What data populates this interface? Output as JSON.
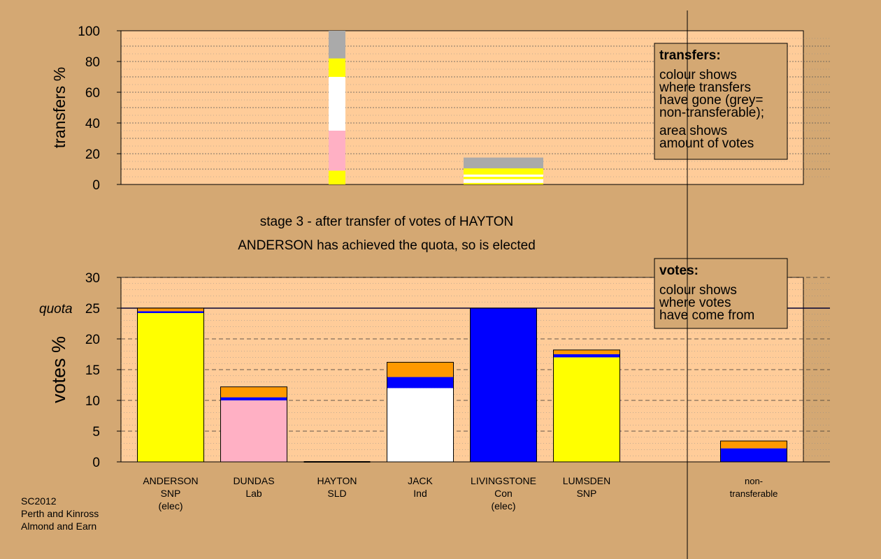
{
  "colors": {
    "background": "#D4A873",
    "plot_bg": "#FFCC99",
    "SNP": "#FFFF00",
    "Lab": "#FFB0C4",
    "SLD": "#FF9900",
    "Ind": "#FFFFFF",
    "Con": "#0000FF",
    "nontransferable": "#AAAAAA"
  },
  "titles": {
    "stage": "stage 3 - after transfer of votes of HAYTON",
    "status": "ANDERSON has achieved the quota, so is elected"
  },
  "footer": [
    "SC2012",
    "Perth and Kinross",
    "Almond and Earn"
  ],
  "chart_data": [
    {
      "type": "bar",
      "name": "transfers",
      "ylabel": "transfers %",
      "ylim": [
        0,
        100
      ],
      "yticks": [
        0,
        20,
        40,
        60,
        80,
        100
      ],
      "legend": {
        "title": "transfers:",
        "lines": [
          "colour shows",
          "where transfers",
          "have gone (grey=",
          "non-transferable);",
          "",
          "area shows",
          "amount of votes"
        ]
      },
      "bars": [
        {
          "category": "HAYTON",
          "stacked": [
            {
              "party": "SNP",
              "value": 9
            },
            {
              "party": "Lab",
              "value": 26
            },
            {
              "party": "Ind",
              "value": 35
            },
            {
              "party": "SNP",
              "value": 12
            },
            {
              "party": "nontransferable",
              "value": 18
            }
          ]
        },
        {
          "category": "LIVINGSTONE",
          "stacked": [
            {
              "party": "SNP",
              "value": 1
            },
            {
              "party": "Ind",
              "value": 2.5
            },
            {
              "party": "SNP",
              "value": 1.5
            },
            {
              "party": "Ind",
              "value": 1.5
            },
            {
              "party": "SNP",
              "value": 4
            },
            {
              "party": "nontransferable",
              "value": 7
            }
          ]
        }
      ]
    },
    {
      "type": "bar",
      "name": "votes",
      "ylabel": "votes %",
      "ylim": [
        0,
        30
      ],
      "yticks": [
        0,
        5,
        10,
        15,
        20,
        25,
        30
      ],
      "quota": 25,
      "quota_label": "quota",
      "legend": {
        "title": "votes:",
        "lines": [
          "colour shows",
          "where votes",
          "have come from"
        ]
      },
      "categories": [
        {
          "label": [
            "ANDERSON",
            "SNP",
            "(elec)"
          ],
          "stacked": [
            {
              "party": "SNP",
              "value": 24.2
            },
            {
              "party": "Con",
              "value": 0.3
            },
            {
              "party": "SLD",
              "value": 0.5
            }
          ]
        },
        {
          "label": [
            "DUNDAS",
            "Lab"
          ],
          "stacked": [
            {
              "party": "Lab",
              "value": 10
            },
            {
              "party": "Con",
              "value": 0.5
            },
            {
              "party": "SLD",
              "value": 1.7
            }
          ]
        },
        {
          "label": [
            "HAYTON",
            "SLD"
          ],
          "stacked": []
        },
        {
          "label": [
            "JACK",
            "Ind"
          ],
          "stacked": [
            {
              "party": "Ind",
              "value": 12
            },
            {
              "party": "Con",
              "value": 1.8
            },
            {
              "party": "SLD",
              "value": 2.4
            }
          ]
        },
        {
          "label": [
            "LIVINGSTONE",
            "Con",
            "(elec)"
          ],
          "stacked": [
            {
              "party": "Con",
              "value": 25
            }
          ]
        },
        {
          "label": [
            "LUMSDEN",
            "SNP"
          ],
          "stacked": [
            {
              "party": "SNP",
              "value": 17
            },
            {
              "party": "Con",
              "value": 0.5
            },
            {
              "party": "SLD",
              "value": 0.7
            }
          ]
        }
      ],
      "nontransferable": {
        "label": [
          "non-",
          "transferable"
        ],
        "stacked": [
          {
            "party": "Con",
            "value": 2.2
          },
          {
            "party": "SLD",
            "value": 1.2
          }
        ]
      }
    }
  ]
}
